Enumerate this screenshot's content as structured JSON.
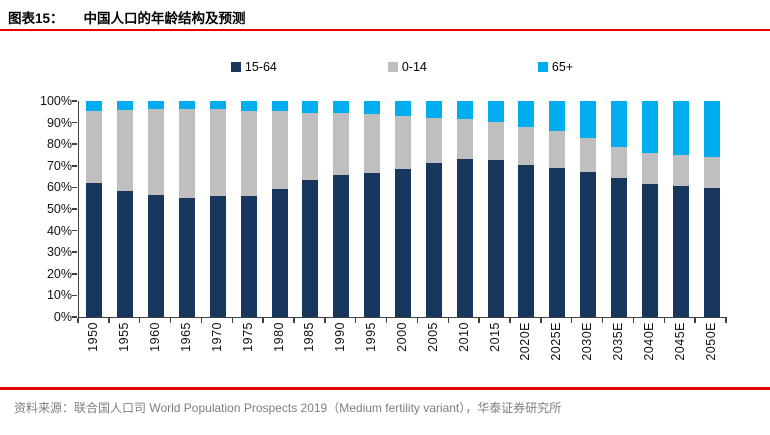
{
  "header": {
    "figure_label": "图表15：",
    "figure_title": "中国人口的年龄结构及预测"
  },
  "colors": {
    "navy": "#17375E",
    "gray": "#BFBFBF",
    "light_blue": "#00AEEF",
    "red_rule": "#E60000",
    "axis": "#404040",
    "footer_text": "#7F7F7F"
  },
  "chart_data": {
    "type": "bar",
    "stacked": true,
    "stacked_total": 100,
    "title": "中国人口的年龄结构及预测",
    "xlabel": "",
    "ylabel": "",
    "ylim": [
      0,
      100
    ],
    "grid": false,
    "legend_position": "top",
    "y_ticks": [
      "100%",
      "90%",
      "80%",
      "70%",
      "60%",
      "50%",
      "40%",
      "30%",
      "20%",
      "10%",
      "0%"
    ],
    "categories": [
      "1950",
      "1955",
      "1960",
      "1965",
      "1970",
      "1975",
      "1980",
      "1985",
      "1990",
      "1995",
      "2000",
      "2005",
      "2010",
      "2015",
      "2020E",
      "2025E",
      "2030E",
      "2035E",
      "2040E",
      "2045E",
      "2050E"
    ],
    "series": [
      {
        "name": "15-64",
        "color_key": "navy",
        "values": [
          61.9,
          58.2,
          56.4,
          55.0,
          55.8,
          56.1,
          59.2,
          63.5,
          65.9,
          66.8,
          68.4,
          71.4,
          73.2,
          72.6,
          70.3,
          68.9,
          67.3,
          64.3,
          61.6,
          60.6,
          59.5
        ]
      },
      {
        "name": "0-14",
        "color_key": "gray",
        "values": [
          33.6,
          37.6,
          39.9,
          41.3,
          40.4,
          39.5,
          36.1,
          31.1,
          28.5,
          27.1,
          24.8,
          20.9,
          18.5,
          17.9,
          17.7,
          17.1,
          15.7,
          14.6,
          14.5,
          14.3,
          14.4
        ]
      },
      {
        "name": "65+",
        "color_key": "light_blue",
        "values": [
          4.5,
          4.2,
          3.7,
          3.7,
          3.8,
          4.4,
          4.7,
          5.4,
          5.6,
          6.1,
          6.8,
          7.7,
          8.3,
          9.5,
          12.0,
          14.0,
          17.0,
          21.1,
          23.9,
          25.1,
          26.1
        ]
      }
    ]
  },
  "footer": {
    "source_text": "资料来源：联合国人口司 World Population Prospects 2019（Medium fertility variant），华泰证券研究所"
  }
}
